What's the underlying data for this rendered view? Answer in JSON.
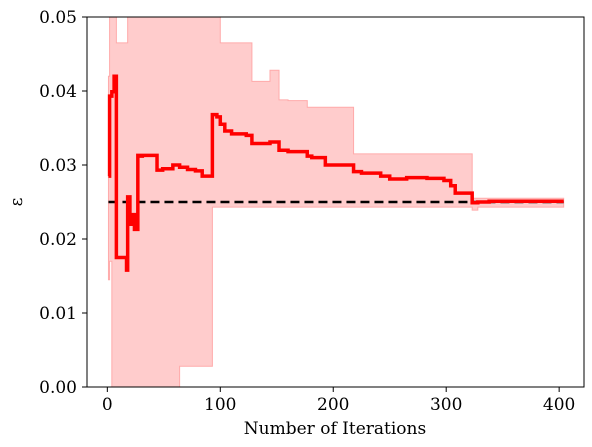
{
  "chart_data": {
    "type": "line",
    "title": "",
    "xlabel": "Number of Iterations",
    "ylabel": "ε",
    "xlim": [
      -18,
      422
    ],
    "ylim": [
      0.0,
      0.05
    ],
    "x_ticks": [
      0,
      100,
      200,
      300,
      400
    ],
    "x_tick_labels": [
      "0",
      "100",
      "200",
      "300",
      "400"
    ],
    "y_ticks": [
      0.0,
      0.01,
      0.02,
      0.03,
      0.04,
      0.05
    ],
    "y_tick_labels": [
      "0.00",
      "0.01",
      "0.02",
      "0.03",
      "0.04",
      "0.05"
    ],
    "grid": false,
    "legend": "none",
    "colors": {
      "mean_line": "#ff0000",
      "band_fill": "#ffcccc",
      "band_edge": "#ffaaaa",
      "reference_line": "#000000"
    },
    "series": [
      {
        "style": "solid-thick",
        "x": [
          1,
          2,
          2,
          4,
          4,
          6,
          6,
          8,
          8,
          17,
          17,
          18,
          18,
          20,
          20,
          23,
          23,
          24,
          24,
          27,
          27,
          28,
          28,
          31,
          31,
          44,
          44,
          49,
          49,
          58,
          58,
          64,
          64,
          71,
          71,
          78,
          78,
          84,
          84,
          93,
          93,
          97,
          97,
          100,
          100,
          104,
          104,
          110,
          110,
          123,
          123,
          128,
          128,
          144,
          144,
          152,
          152,
          160,
          160,
          177,
          177,
          181,
          181,
          193,
          193,
          218,
          218,
          225,
          225,
          242,
          242,
          250,
          250,
          265,
          265,
          283,
          283,
          298,
          298,
          304,
          304,
          308,
          308,
          323,
          323,
          328,
          328,
          338,
          338,
          404
        ],
        "y": [
          0.0285,
          0.0285,
          0.0393,
          0.0393,
          0.0399,
          0.0399,
          0.042,
          0.042,
          0.0175,
          0.0175,
          0.0158,
          0.0158,
          0.0257,
          0.0257,
          0.022,
          0.022,
          0.0233,
          0.0233,
          0.0213,
          0.0213,
          0.0313,
          0.0313,
          0.0312,
          0.0312,
          0.0313,
          0.0313,
          0.0293,
          0.0293,
          0.0295,
          0.0295,
          0.03,
          0.03,
          0.0297,
          0.0297,
          0.0294,
          0.0294,
          0.0292,
          0.0292,
          0.0285,
          0.0285,
          0.0368,
          0.0368,
          0.0365,
          0.0365,
          0.0355,
          0.0355,
          0.0346,
          0.0346,
          0.0342,
          0.0342,
          0.034,
          0.034,
          0.0329,
          0.0329,
          0.0331,
          0.0331,
          0.032,
          0.032,
          0.0318,
          0.0318,
          0.0312,
          0.0312,
          0.031,
          0.031,
          0.03,
          0.03,
          0.0291,
          0.0291,
          0.0289,
          0.0289,
          0.0285,
          0.0285,
          0.0281,
          0.0281,
          0.0283,
          0.0283,
          0.0282,
          0.0282,
          0.0279,
          0.0279,
          0.0272,
          0.0272,
          0.0262,
          0.0262,
          0.0249,
          0.0249,
          0.025,
          0.025,
          0.0251,
          0.0251
        ]
      },
      {
        "style": "shaded-band",
        "x": [
          1,
          2,
          2,
          4,
          4,
          6,
          6,
          8,
          8,
          17,
          17,
          18,
          18,
          20,
          20,
          23,
          23,
          24,
          24,
          27,
          27,
          28,
          28,
          31,
          31,
          44,
          44,
          49,
          49,
          58,
          58,
          64,
          64,
          71,
          71,
          78,
          78,
          84,
          84,
          93,
          93,
          97,
          97,
          100,
          100,
          104,
          104,
          110,
          110,
          123,
          123,
          128,
          128,
          144,
          144,
          152,
          152,
          160,
          160,
          177,
          177,
          181,
          181,
          193,
          193,
          218,
          218,
          225,
          225,
          242,
          242,
          250,
          250,
          265,
          265,
          283,
          283,
          298,
          298,
          304,
          304,
          308,
          308,
          323,
          323,
          328,
          328,
          338,
          338,
          404
        ],
        "upper": [
          0.042,
          0.042,
          0.05,
          0.05,
          0.05,
          0.05,
          0.05,
          0.05,
          0.0465,
          0.0465,
          0.0465,
          0.0465,
          0.05,
          0.05,
          0.05,
          0.05,
          0.05,
          0.05,
          0.05,
          0.05,
          0.05,
          0.05,
          0.05,
          0.05,
          0.05,
          0.05,
          0.05,
          0.05,
          0.05,
          0.05,
          0.05,
          0.05,
          0.05,
          0.05,
          0.05,
          0.05,
          0.05,
          0.05,
          0.05,
          0.05,
          0.05,
          0.05,
          0.05,
          0.05,
          0.0465,
          0.0465,
          0.0465,
          0.0465,
          0.0465,
          0.0465,
          0.0465,
          0.0465,
          0.0413,
          0.0413,
          0.0428,
          0.0428,
          0.0388,
          0.0388,
          0.0387,
          0.0387,
          0.0378,
          0.0378,
          0.0378,
          0.0378,
          0.0378,
          0.0378,
          0.0315,
          0.0315,
          0.0315,
          0.0315,
          0.0315,
          0.0315,
          0.0315,
          0.0315,
          0.0315,
          0.0315,
          0.0315,
          0.0315,
          0.0315,
          0.0315,
          0.0315,
          0.0315,
          0.0315,
          0.0315,
          0.0255,
          0.0255,
          0.0255,
          0.0255,
          0.0255,
          0.0255
        ],
        "lower": [
          0.0145,
          0.0145,
          0.017,
          0.017,
          0.0,
          0.0,
          0.0,
          0.0,
          0.0,
          0.0,
          0.0,
          0.0,
          0.0,
          0.0,
          0.0,
          0.0,
          0.0,
          0.0,
          0.0,
          0.0,
          0.0,
          0.0,
          0.0,
          0.0,
          0.0,
          0.0,
          0.0,
          0.0,
          0.0,
          0.0,
          0.0,
          0.0,
          0.0028,
          0.0028,
          0.0028,
          0.0028,
          0.0028,
          0.0028,
          0.0028,
          0.0028,
          0.0243,
          0.0243,
          0.0243,
          0.0243,
          0.0243,
          0.0243,
          0.0243,
          0.0243,
          0.0243,
          0.0243,
          0.0243,
          0.0243,
          0.0243,
          0.0243,
          0.0243,
          0.0243,
          0.0243,
          0.0243,
          0.0243,
          0.0243,
          0.0243,
          0.0243,
          0.0243,
          0.0243,
          0.0243,
          0.0243,
          0.0243,
          0.0243,
          0.0243,
          0.0243,
          0.0243,
          0.0243,
          0.0243,
          0.0243,
          0.0243,
          0.0243,
          0.0243,
          0.0243,
          0.0243,
          0.0243,
          0.0243,
          0.0243,
          0.0243,
          0.0243,
          0.0239,
          0.0239,
          0.0243,
          0.0243,
          0.0243,
          0.0243
        ]
      },
      {
        "style": "dashed",
        "x": [
          1,
          404
        ],
        "y": [
          0.025,
          0.025
        ]
      }
    ]
  }
}
